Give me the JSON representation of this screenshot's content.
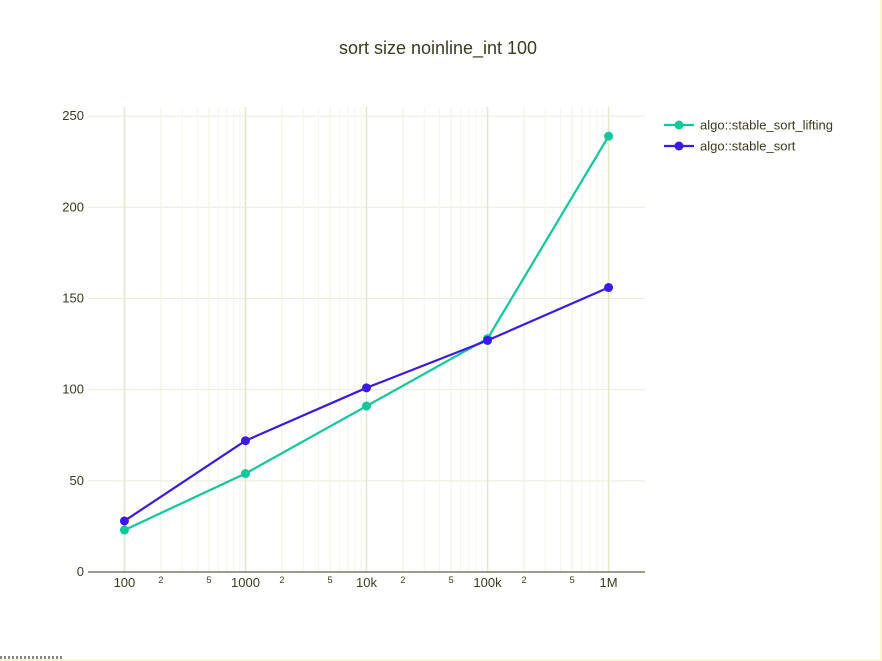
{
  "chart_data": {
    "type": "line",
    "title": "sort size noinline_int 100",
    "xlabel": "",
    "ylabel": "",
    "x_scale": "log",
    "x": [
      100,
      1000,
      10000,
      100000,
      1000000
    ],
    "x_major_ticks": [
      {
        "value": 100,
        "label": "100"
      },
      {
        "value": 1000,
        "label": "1000"
      },
      {
        "value": 10000,
        "label": "10k"
      },
      {
        "value": 100000,
        "label": "100k"
      },
      {
        "value": 1000000,
        "label": "1M"
      }
    ],
    "x_minor_ticks": [
      {
        "value": 200,
        "label": "2"
      },
      {
        "value": 500,
        "label": "5"
      },
      {
        "value": 2000,
        "label": "2"
      },
      {
        "value": 5000,
        "label": "5"
      },
      {
        "value": 20000,
        "label": "2"
      },
      {
        "value": 50000,
        "label": "5"
      },
      {
        "value": 200000,
        "label": "2"
      },
      {
        "value": 500000,
        "label": "5"
      }
    ],
    "xlim": [
      50,
      2000000
    ],
    "ylim": [
      0,
      255
    ],
    "y_ticks": [
      {
        "value": 0,
        "label": "0"
      },
      {
        "value": 50,
        "label": "50"
      },
      {
        "value": 100,
        "label": "100"
      },
      {
        "value": 150,
        "label": "150"
      },
      {
        "value": 200,
        "label": "200"
      },
      {
        "value": 250,
        "label": "250"
      }
    ],
    "grid": true,
    "legend_position": "top-right",
    "series": [
      {
        "name": "algo::stable_sort_lifting",
        "color": "#10c99b",
        "values": [
          23,
          54,
          91,
          128,
          239
        ]
      },
      {
        "name": "algo::stable_sort",
        "color": "#3a1ae8",
        "values": [
          28,
          72,
          101,
          127,
          156
        ]
      }
    ]
  }
}
